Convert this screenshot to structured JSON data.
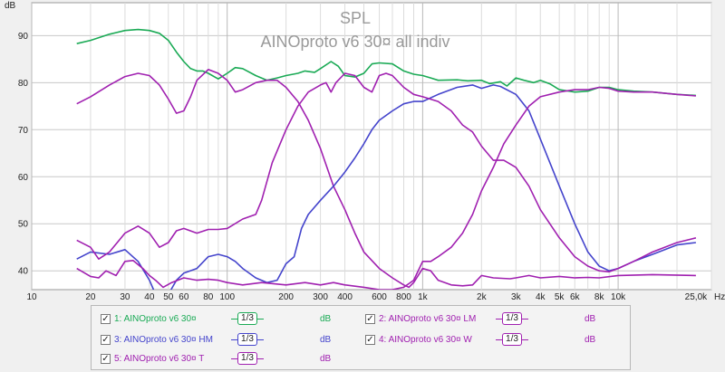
{
  "chart_data": {
    "type": "line",
    "title": "SPL",
    "subtitle": "AINOproto v6 30¤ all indiv",
    "ylabel": "dB",
    "xunit": "Hz",
    "x_scale": "log",
    "xlim": [
      10,
      30000
    ],
    "ylim": [
      36,
      97
    ],
    "grid": true,
    "y_ticks": [
      40,
      50,
      60,
      70,
      80,
      90
    ],
    "x_ticks": [
      {
        "v": 10,
        "label": "10"
      },
      {
        "v": 20,
        "label": "20"
      },
      {
        "v": 30,
        "label": "30"
      },
      {
        "v": 40,
        "label": "40"
      },
      {
        "v": 50,
        "label": "50"
      },
      {
        "v": 60,
        "label": "60"
      },
      {
        "v": 80,
        "label": "80"
      },
      {
        "v": 100,
        "label": "100"
      },
      {
        "v": 200,
        "label": "200"
      },
      {
        "v": 300,
        "label": "300"
      },
      {
        "v": 400,
        "label": "400"
      },
      {
        "v": 600,
        "label": "600"
      },
      {
        "v": 800,
        "label": "800"
      },
      {
        "v": 1000,
        "label": "1k"
      },
      {
        "v": 2000,
        "label": "2k"
      },
      {
        "v": 3000,
        "label": "3k"
      },
      {
        "v": 4000,
        "label": "4k"
      },
      {
        "v": 5000,
        "label": "5k"
      },
      {
        "v": 6000,
        "label": "6k"
      },
      {
        "v": 8000,
        "label": "8k"
      },
      {
        "v": 10000,
        "label": "10k"
      },
      {
        "v": 25000,
        "label": "25,0k"
      }
    ],
    "series": [
      {
        "name": "AINOproto v6 30¤",
        "color": "#1aaa55",
        "points": [
          [
            17,
            88.3
          ],
          [
            20,
            89
          ],
          [
            25,
            90.3
          ],
          [
            30,
            91.1
          ],
          [
            35,
            91.3
          ],
          [
            40,
            91.1
          ],
          [
            45,
            90.5
          ],
          [
            50,
            89
          ],
          [
            55,
            86.5
          ],
          [
            60,
            84.5
          ],
          [
            65,
            83
          ],
          [
            70,
            82.5
          ],
          [
            75,
            82.5
          ],
          [
            80,
            82
          ],
          [
            90,
            80.8
          ],
          [
            100,
            82
          ],
          [
            110,
            83.2
          ],
          [
            120,
            83
          ],
          [
            140,
            81.5
          ],
          [
            160,
            80.5
          ],
          [
            180,
            81
          ],
          [
            200,
            81.5
          ],
          [
            230,
            82
          ],
          [
            250,
            82.5
          ],
          [
            280,
            82.2
          ],
          [
            300,
            83
          ],
          [
            340,
            84.5
          ],
          [
            370,
            83.5
          ],
          [
            400,
            81.5
          ],
          [
            450,
            81.2
          ],
          [
            500,
            82
          ],
          [
            550,
            84
          ],
          [
            600,
            84.2
          ],
          [
            700,
            84
          ],
          [
            800,
            82.5
          ],
          [
            900,
            81.8
          ],
          [
            1000,
            81.5
          ],
          [
            1100,
            81
          ],
          [
            1200,
            80.5
          ],
          [
            1500,
            80.6
          ],
          [
            1700,
            80.4
          ],
          [
            2000,
            80.5
          ],
          [
            2200,
            79.8
          ],
          [
            2500,
            80.2
          ],
          [
            2700,
            79.3
          ],
          [
            3000,
            81
          ],
          [
            3300,
            80.5
          ],
          [
            3700,
            80
          ],
          [
            4000,
            80.5
          ],
          [
            4500,
            79.7
          ],
          [
            5000,
            78.5
          ],
          [
            6000,
            78
          ],
          [
            7000,
            78.2
          ],
          [
            8000,
            79
          ],
          [
            9000,
            79
          ],
          [
            10000,
            78.5
          ],
          [
            12000,
            78.2
          ],
          [
            15000,
            78
          ],
          [
            20000,
            77.5
          ],
          [
            25000,
            77.3
          ]
        ]
      },
      {
        "name": "AINOproto v6 30¤ LM",
        "color": "#a020b0",
        "points": [
          [
            17,
            75.5
          ],
          [
            20,
            77
          ],
          [
            25,
            79.5
          ],
          [
            30,
            81.3
          ],
          [
            35,
            82
          ],
          [
            40,
            81.5
          ],
          [
            45,
            79.5
          ],
          [
            50,
            76.5
          ],
          [
            55,
            73.5
          ],
          [
            60,
            74
          ],
          [
            65,
            77
          ],
          [
            70,
            80.5
          ],
          [
            80,
            82.8
          ],
          [
            90,
            82
          ],
          [
            100,
            80.5
          ],
          [
            110,
            78
          ],
          [
            120,
            78.5
          ],
          [
            140,
            80
          ],
          [
            160,
            80.5
          ],
          [
            180,
            80.5
          ],
          [
            200,
            79
          ],
          [
            230,
            76
          ],
          [
            260,
            72
          ],
          [
            300,
            66
          ],
          [
            350,
            58
          ],
          [
            400,
            53
          ],
          [
            450,
            48
          ],
          [
            500,
            44
          ],
          [
            600,
            40.5
          ],
          [
            700,
            38.5
          ],
          [
            800,
            37
          ],
          [
            850,
            36.5
          ],
          [
            900,
            37.5
          ],
          [
            1000,
            40.5
          ],
          [
            1100,
            40
          ],
          [
            1200,
            38
          ],
          [
            1400,
            37
          ],
          [
            1600,
            36.8
          ],
          [
            1800,
            37
          ],
          [
            2000,
            39
          ],
          [
            2300,
            38.5
          ],
          [
            2800,
            38.3
          ],
          [
            3000,
            38.5
          ],
          [
            3500,
            39
          ],
          [
            4000,
            38.5
          ],
          [
            5000,
            38.8
          ],
          [
            6000,
            38.5
          ],
          [
            7000,
            38.6
          ],
          [
            8000,
            38.5
          ],
          [
            10000,
            39
          ],
          [
            15000,
            39.2
          ],
          [
            25000,
            39
          ]
        ]
      },
      {
        "name": "AINOproto v6 30¤ HM",
        "color": "#4444cc",
        "points": [
          [
            17,
            42.5
          ],
          [
            20,
            44
          ],
          [
            25,
            43.5
          ],
          [
            30,
            44.5
          ],
          [
            35,
            42
          ],
          [
            40,
            38
          ],
          [
            42,
            36
          ],
          [
            45,
            34
          ],
          [
            50,
            35
          ],
          [
            55,
            38
          ],
          [
            60,
            39.5
          ],
          [
            70,
            40.5
          ],
          [
            80,
            43
          ],
          [
            90,
            43.5
          ],
          [
            100,
            43
          ],
          [
            110,
            42
          ],
          [
            120,
            40.5
          ],
          [
            140,
            38.5
          ],
          [
            160,
            37.5
          ],
          [
            180,
            38
          ],
          [
            200,
            41.5
          ],
          [
            220,
            43
          ],
          [
            240,
            49
          ],
          [
            260,
            52
          ],
          [
            300,
            55
          ],
          [
            350,
            58
          ],
          [
            400,
            61
          ],
          [
            450,
            64
          ],
          [
            500,
            67
          ],
          [
            550,
            70
          ],
          [
            600,
            72
          ],
          [
            700,
            74
          ],
          [
            800,
            75.5
          ],
          [
            900,
            76
          ],
          [
            1000,
            76
          ],
          [
            1200,
            77.5
          ],
          [
            1500,
            79
          ],
          [
            1800,
            79.5
          ],
          [
            2000,
            78.8
          ],
          [
            2300,
            79.5
          ],
          [
            2500,
            79.2
          ],
          [
            3000,
            77.5
          ],
          [
            3500,
            74
          ],
          [
            4000,
            68
          ],
          [
            5000,
            58
          ],
          [
            6000,
            50
          ],
          [
            7000,
            44
          ],
          [
            8000,
            41
          ],
          [
            9000,
            40
          ],
          [
            10000,
            40.5
          ],
          [
            12000,
            42
          ],
          [
            15000,
            43.5
          ],
          [
            20000,
            45.5
          ],
          [
            25000,
            46
          ]
        ]
      },
      {
        "name": "AINOproto v6 30¤ W",
        "color": "#a020b0",
        "points": [
          [
            17,
            40.5
          ],
          [
            20,
            38.8
          ],
          [
            22,
            38.5
          ],
          [
            24,
            40
          ],
          [
            27,
            39
          ],
          [
            30,
            42
          ],
          [
            33,
            42.2
          ],
          [
            37,
            40.5
          ],
          [
            40,
            39
          ],
          [
            43,
            38
          ],
          [
            47,
            36.5
          ],
          [
            52,
            37.5
          ],
          [
            60,
            38.5
          ],
          [
            70,
            38
          ],
          [
            80,
            38.2
          ],
          [
            90,
            38
          ],
          [
            100,
            37.5
          ],
          [
            120,
            37
          ],
          [
            150,
            37.5
          ],
          [
            200,
            37
          ],
          [
            250,
            37.5
          ],
          [
            300,
            37
          ],
          [
            350,
            37.5
          ],
          [
            400,
            37
          ],
          [
            500,
            36.5
          ],
          [
            600,
            36
          ],
          [
            700,
            36
          ],
          [
            800,
            36.5
          ],
          [
            900,
            38
          ],
          [
            1000,
            42
          ],
          [
            1100,
            42
          ],
          [
            1200,
            43
          ],
          [
            1400,
            45
          ],
          [
            1600,
            48
          ],
          [
            1800,
            52
          ],
          [
            2000,
            57
          ],
          [
            2300,
            62
          ],
          [
            2600,
            67
          ],
          [
            3000,
            71
          ],
          [
            3500,
            75
          ],
          [
            4000,
            77
          ],
          [
            5000,
            78
          ],
          [
            6000,
            78.5
          ],
          [
            7000,
            78.5
          ],
          [
            8000,
            79
          ],
          [
            9000,
            78.8
          ],
          [
            10000,
            78.2
          ],
          [
            12000,
            78
          ],
          [
            15000,
            78
          ],
          [
            20000,
            77.5
          ],
          [
            25000,
            77.2
          ]
        ]
      },
      {
        "name": "AINOproto v6 30¤ T",
        "color": "#a020b0",
        "points": [
          [
            17,
            46.5
          ],
          [
            20,
            45
          ],
          [
            22,
            42.5
          ],
          [
            25,
            44
          ],
          [
            30,
            48
          ],
          [
            35,
            49.5
          ],
          [
            40,
            48
          ],
          [
            45,
            45
          ],
          [
            50,
            46
          ],
          [
            55,
            48.5
          ],
          [
            60,
            49
          ],
          [
            70,
            48
          ],
          [
            80,
            48.8
          ],
          [
            90,
            48.8
          ],
          [
            100,
            49
          ],
          [
            120,
            51
          ],
          [
            140,
            52
          ],
          [
            150,
            55
          ],
          [
            170,
            63
          ],
          [
            200,
            70
          ],
          [
            230,
            75
          ],
          [
            260,
            78
          ],
          [
            300,
            79.5
          ],
          [
            320,
            80
          ],
          [
            340,
            78
          ],
          [
            360,
            80
          ],
          [
            400,
            82
          ],
          [
            450,
            81.5
          ],
          [
            500,
            79
          ],
          [
            550,
            78
          ],
          [
            600,
            81.5
          ],
          [
            650,
            82
          ],
          [
            700,
            81.5
          ],
          [
            800,
            79
          ],
          [
            900,
            77.5
          ],
          [
            1000,
            77
          ],
          [
            1200,
            76
          ],
          [
            1400,
            74
          ],
          [
            1600,
            71
          ],
          [
            1800,
            69.5
          ],
          [
            2000,
            66.5
          ],
          [
            2300,
            63.5
          ],
          [
            2600,
            63.5
          ],
          [
            3000,
            62
          ],
          [
            3500,
            58
          ],
          [
            4000,
            53
          ],
          [
            5000,
            47
          ],
          [
            6000,
            43
          ],
          [
            7000,
            41
          ],
          [
            8000,
            40
          ],
          [
            9000,
            39.8
          ],
          [
            10000,
            40.5
          ],
          [
            12000,
            42
          ],
          [
            15000,
            44
          ],
          [
            20000,
            46
          ],
          [
            25000,
            47
          ]
        ]
      }
    ]
  },
  "legend": {
    "smoothing": "1/3",
    "unit": "dB",
    "items": [
      {
        "label": "1: AINOproto v6 30¤",
        "color": "#1aaa55"
      },
      {
        "label": "2: AINOproto v6 30¤ LM",
        "color": "#a020b0"
      },
      {
        "label": "3: AINOproto v6 30¤ HM",
        "color": "#4444cc"
      },
      {
        "label": "4: AINOproto v6 30¤ W",
        "color": "#a020b0"
      },
      {
        "label": "5: AINOproto v6 30¤ T",
        "color": "#a020b0"
      }
    ]
  }
}
